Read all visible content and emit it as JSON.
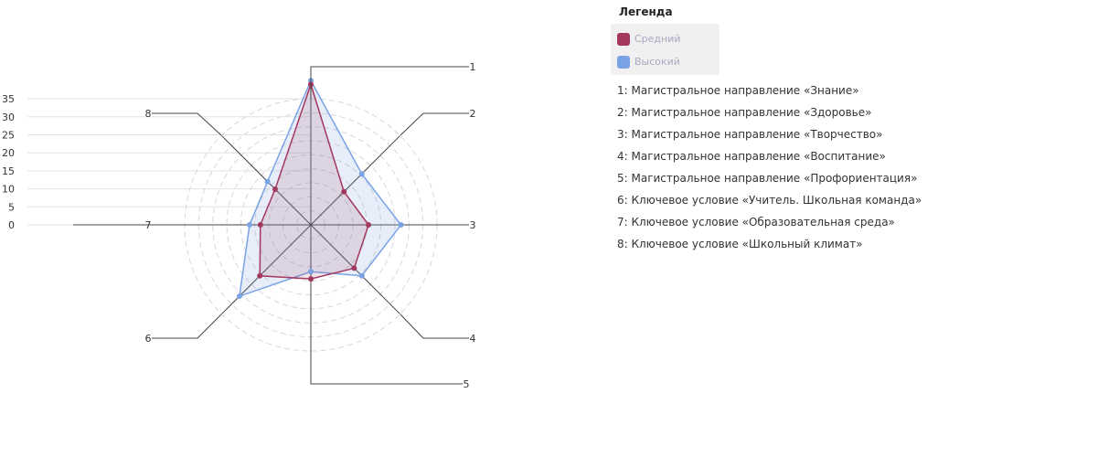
{
  "legend": {
    "title": "Легенда",
    "series": [
      {
        "name": "Средний",
        "color": "#a3385e"
      },
      {
        "name": "Высокий",
        "color": "#7aa3e5"
      }
    ]
  },
  "descriptions": [
    "1: Магистральное направление «Знание»",
    "2: Магистральное направление «Здоровье»",
    "3: Магистральное направление «Творчество»",
    "4: Магистральное направление «Воспитание»",
    "5: Магистральное направление «Профориентация»",
    "6: Ключевое условие «Учитель. Школьная команда»",
    "7: Ключевое условие «Образовательная среда»",
    "8: Ключевое условие «Школьный климат»"
  ],
  "chart_data": {
    "type": "radar",
    "categories": [
      "1",
      "2",
      "3",
      "4",
      "5",
      "6",
      "7",
      "8"
    ],
    "series": [
      {
        "name": "Средний",
        "color": "#a3385e",
        "values": [
          39,
          13,
          16,
          17,
          15,
          20,
          14,
          14
        ]
      },
      {
        "name": "Высокий",
        "color": "#7aa3e5",
        "values": [
          40,
          20,
          25,
          20,
          13,
          28,
          17,
          17
        ]
      }
    ],
    "ylim": [
      0,
      35
    ],
    "ticks": [
      0,
      5,
      10,
      15,
      20,
      25,
      30,
      35
    ]
  }
}
